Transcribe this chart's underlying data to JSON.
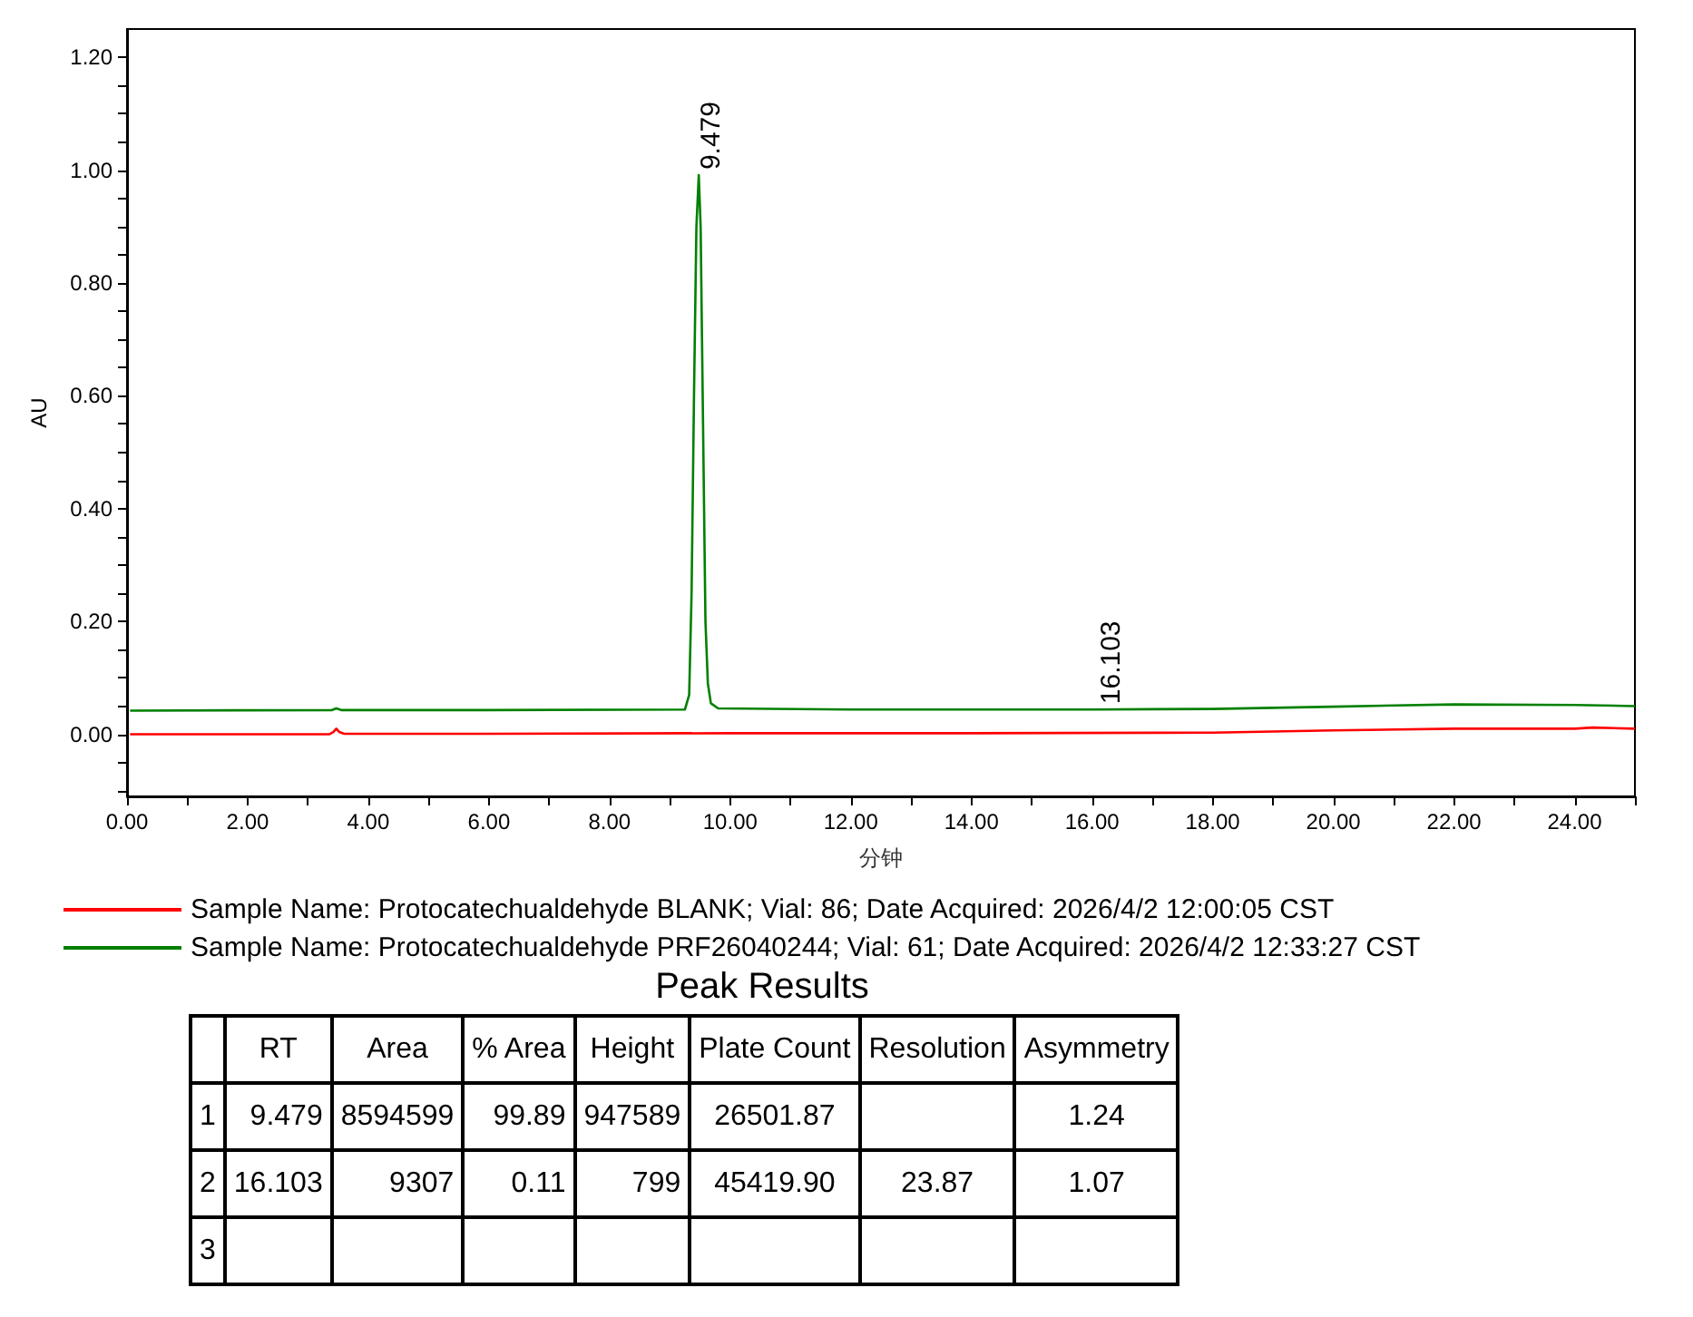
{
  "chart_data": [
    {
      "type": "line",
      "xlabel": "分钟",
      "ylabel": "AU",
      "xlim": [
        0,
        25
      ],
      "ylim": [
        -0.11,
        1.25
      ],
      "xticks": [
        {
          "value": 0,
          "label": "0.00"
        },
        {
          "value": 1,
          "label": null
        },
        {
          "value": 2,
          "label": "2.00"
        },
        {
          "value": 3,
          "label": null
        },
        {
          "value": 4,
          "label": "4.00"
        },
        {
          "value": 5,
          "label": null
        },
        {
          "value": 6,
          "label": "6.00"
        },
        {
          "value": 7,
          "label": null
        },
        {
          "value": 8,
          "label": "8.00"
        },
        {
          "value": 9,
          "label": null
        },
        {
          "value": 10,
          "label": "10.00"
        },
        {
          "value": 11,
          "label": null
        },
        {
          "value": 12,
          "label": "12.00"
        },
        {
          "value": 13,
          "label": null
        },
        {
          "value": 14,
          "label": "14.00"
        },
        {
          "value": 15,
          "label": null
        },
        {
          "value": 16,
          "label": "16.00"
        },
        {
          "value": 17,
          "label": null
        },
        {
          "value": 18,
          "label": "18.00"
        },
        {
          "value": 19,
          "label": null
        },
        {
          "value": 20,
          "label": "20.00"
        },
        {
          "value": 21,
          "label": null
        },
        {
          "value": 22,
          "label": "22.00"
        },
        {
          "value": 23,
          "label": null
        },
        {
          "value": 24,
          "label": "24.00"
        },
        {
          "value": 25,
          "label": null
        }
      ],
      "yticks": [
        {
          "value": -0.1,
          "label": null
        },
        {
          "value": -0.05,
          "label": null
        },
        {
          "value": 0,
          "label": "0.00"
        },
        {
          "value": 0.05,
          "label": null
        },
        {
          "value": 0.1,
          "label": null
        },
        {
          "value": 0.15,
          "label": null
        },
        {
          "value": 0.2,
          "label": "0.20"
        },
        {
          "value": 0.25,
          "label": null
        },
        {
          "value": 0.3,
          "label": null
        },
        {
          "value": 0.35,
          "label": null
        },
        {
          "value": 0.4,
          "label": "0.40"
        },
        {
          "value": 0.45,
          "label": null
        },
        {
          "value": 0.5,
          "label": null
        },
        {
          "value": 0.55,
          "label": null
        },
        {
          "value": 0.6,
          "label": "0.60"
        },
        {
          "value": 0.65,
          "label": null
        },
        {
          "value": 0.7,
          "label": null
        },
        {
          "value": 0.75,
          "label": null
        },
        {
          "value": 0.8,
          "label": "0.80"
        },
        {
          "value": 0.85,
          "label": null
        },
        {
          "value": 0.9,
          "label": null
        },
        {
          "value": 0.95,
          "label": null
        },
        {
          "value": 1,
          "label": "1.00"
        },
        {
          "value": 1.05,
          "label": null
        },
        {
          "value": 1.1,
          "label": null
        },
        {
          "value": 1.15,
          "label": null
        },
        {
          "value": 1.2,
          "label": "1.20"
        }
      ],
      "grid": false,
      "legend": "bottom",
      "marker": "none",
      "line_style": "solid",
      "series": [
        {
          "name": "Sample Name: Protocatechualdehyde BLANK; Vial: 86; Date Acquired: 2026/4/2 12:00:05 CST",
          "color": "#ff0000",
          "x": [
            0.05,
            2,
            3.35,
            3.42,
            3.47,
            3.52,
            3.6,
            6,
            10,
            14,
            18,
            20,
            22,
            24,
            24.3,
            25
          ],
          "values": [
            0,
            0,
            0,
            0.004,
            0.01,
            0.004,
            0.001,
            0.001,
            0.002,
            0.002,
            0.003,
            0.007,
            0.01,
            0.01,
            0.012,
            0.01
          ]
        },
        {
          "name": "Sample Name: Protocatechualdehyde PRF26040244; Vial: 61; Date Acquired: 2026/4/2 12:33:27 CST",
          "color": "#008000",
          "x": [
            0.05,
            3.4,
            3.47,
            3.55,
            6,
            9.25,
            9.32,
            9.36,
            9.4,
            9.44,
            9.479,
            9.51,
            9.55,
            9.59,
            9.63,
            9.68,
            9.8,
            12,
            16,
            18,
            20,
            22,
            24,
            25
          ],
          "values": [
            0.042,
            0.043,
            0.046,
            0.043,
            0.043,
            0.044,
            0.07,
            0.25,
            0.6,
            0.9,
            0.991,
            0.9,
            0.55,
            0.2,
            0.09,
            0.055,
            0.046,
            0.044,
            0.044,
            0.045,
            0.049,
            0.053,
            0.052,
            0.05
          ]
        }
      ],
      "annotations": [
        {
          "text": "9.479",
          "x": 9.479,
          "y": 0.991
        },
        {
          "text": "16.103",
          "x": 16.103,
          "y": 0.044
        }
      ]
    },
    {
      "type": "other",
      "title": "Peak Results",
      "categories": [
        null,
        "RT",
        "Area",
        "% Area",
        "Height",
        "Plate Count",
        "Resolution",
        "Asymmetry"
      ],
      "y_categories": [
        "1",
        "2",
        "3"
      ],
      "cell_labels": [
        [
          "9.479",
          "8594599",
          "99.89",
          "947589",
          "26501.87",
          null,
          "1.24"
        ],
        [
          "16.103",
          "9307",
          "0.11",
          "799",
          "45419.90",
          "23.87",
          "1.07"
        ],
        [
          null,
          null,
          null,
          null,
          null,
          null,
          null
        ]
      ]
    }
  ]
}
